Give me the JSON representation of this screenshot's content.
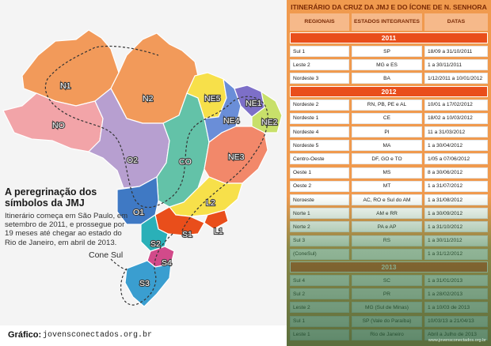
{
  "map": {
    "title": "A peregrinação dos símbolos da JMJ",
    "description": "Itinerário começa em São Paulo, em setembro de 2011, e prossegue por 19 meses até chegar ao estado do Rio de Janeiro, em abril de 2013.",
    "region_labels": [
      "N1",
      "N2",
      "NO",
      "NE5",
      "NE1",
      "NE4",
      "NE2",
      "CO",
      "NE3",
      "O2",
      "O1",
      "L2",
      "S1",
      "L1",
      "S2",
      "S4",
      "S3",
      "Cone Sul"
    ],
    "colors": {
      "north": "#f29a5a",
      "northwest": "#f2a4a8",
      "west": "#b79fd0",
      "center_west": "#63c2a8",
      "northeast": "#f2886a",
      "east": "#f7e04a",
      "south": "#3a9ed0",
      "accent": "#e94e1b"
    }
  },
  "credit": {
    "label": "Gráfico:",
    "url": "jovensconectados.org.br"
  },
  "itinerary": {
    "title": "ITINERÁRIO DA CRUZ DA JMJ E DO ÍCONE DE N. SENHORA",
    "headers": [
      "REGIONAIS",
      "ESTADOS INTEGRANTES",
      "DATAS"
    ],
    "years": [
      "2011",
      "2012",
      "2013"
    ],
    "rows_2011": [
      [
        "Sul 1",
        "SP",
        "18/09 a 31/10/2011"
      ],
      [
        "Leste 2",
        "MG e ES",
        "1 a 30/11/2011"
      ],
      [
        "Nordeste 3",
        "BA",
        "1/12/2011 a 10/01/2012"
      ]
    ],
    "rows_2012": [
      [
        "Nordeste 2",
        "RN, PB, PE e AL",
        "10/01 a 17/02/2012"
      ],
      [
        "Nordeste 1",
        "CE",
        "18/02 a 10/03/2012"
      ],
      [
        "Nordeste 4",
        "PI",
        "11 a 31/03/2012"
      ],
      [
        "Nordeste 5",
        "MA",
        "1 a 30/04/2012"
      ],
      [
        "Centro-Oeste",
        "DF, GO e TO",
        "1/05 a 07/06/2012"
      ],
      [
        "Oeste 1",
        "MS",
        "8 a 30/06/2012"
      ],
      [
        "Oeste 2",
        "MT",
        "1 a 31/07/2012"
      ],
      [
        "Noroeste",
        "AC, RO e Sul do AM",
        "1 a 31/08/2012"
      ],
      [
        "Norte 1",
        "AM e RR",
        "1 a 30/09/2012"
      ],
      [
        "Norte 2",
        "PA e AP",
        "1 a 31/10/2012"
      ],
      [
        "Sul 3",
        "RS",
        "1 a 30/11/2012"
      ],
      [
        "(ConeSul)",
        "",
        "1 a 31/12/2012"
      ]
    ],
    "rows_2013": [
      [
        "Sul 4",
        "SC",
        "1 a 31/01/2013"
      ],
      [
        "Sul 2",
        "PR",
        "1 a 28/02/2013"
      ],
      [
        "Leste 2",
        "MG (Sul de Minas)",
        "1 a 10/03 de 2013"
      ],
      [
        "Sul 1",
        "SP (Vale do Paraíba)",
        "10/03/13 a 21/04/13"
      ],
      [
        "Leste 1",
        "Rio de Janeiro",
        "Abril a Julho de 2013"
      ]
    ],
    "footer_url": "www.jovensconectados.org.br"
  }
}
